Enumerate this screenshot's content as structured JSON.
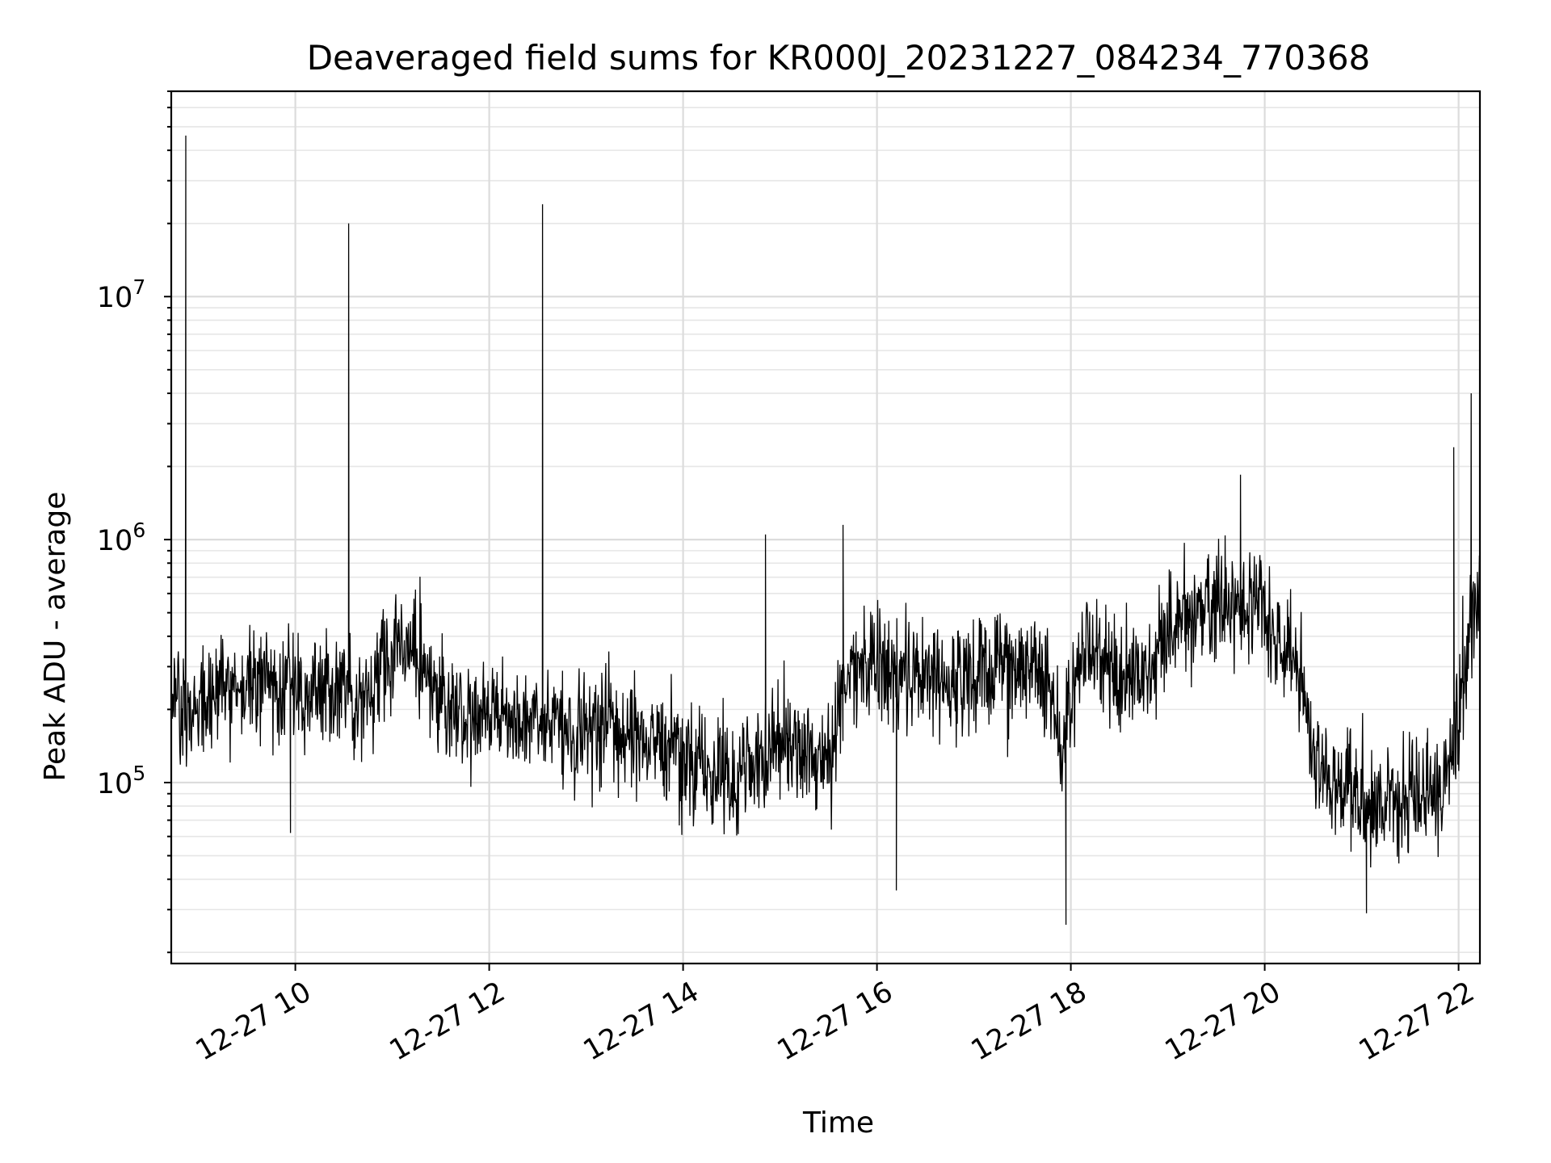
{
  "chart_data": {
    "type": "line",
    "title": "Deaveraged field sums for KR000J_20231227_084234_770368",
    "xlabel": "Time",
    "ylabel": "Peak ADU - average",
    "x_ticks": [
      {
        "hour": 10,
        "label": "12-27 10"
      },
      {
        "hour": 12,
        "label": "12-27 12"
      },
      {
        "hour": 14,
        "label": "12-27 14"
      },
      {
        "hour": 16,
        "label": "12-27 16"
      },
      {
        "hour": 18,
        "label": "12-27 18"
      },
      {
        "hour": 20,
        "label": "12-27 20"
      },
      {
        "hour": 22,
        "label": "12-27 22"
      }
    ],
    "y_ticks": [
      {
        "value": 100000,
        "base": "10",
        "exp": "5"
      },
      {
        "value": 1000000,
        "base": "10",
        "exp": "6"
      },
      {
        "value": 10000000,
        "base": "10",
        "exp": "7"
      }
    ],
    "x_range_hours": [
      8.72,
      22.22
    ],
    "y_scale": "log",
    "ylim": [
      18000,
      70000000
    ],
    "grid": true,
    "line_color": "#000000",
    "series": [
      {
        "x_hours": [
          8.72,
          8.9,
          9.1,
          9.3,
          9.5,
          9.7,
          9.9,
          10.1,
          10.3,
          10.5,
          10.7,
          10.9,
          11.1,
          11.3,
          11.5,
          11.7,
          11.9,
          12.1,
          12.3,
          12.5,
          12.7,
          12.9,
          13.1,
          13.3,
          13.5,
          13.7,
          13.9,
          14.1,
          14.3,
          14.5,
          14.7,
          14.9,
          15.1,
          15.3,
          15.5,
          15.7,
          15.9,
          16.1,
          16.3,
          16.5,
          16.7,
          16.9,
          17.1,
          17.3,
          17.5,
          17.7,
          17.9,
          18.1,
          18.3,
          18.5,
          18.7,
          18.9,
          19.1,
          19.3,
          19.5,
          19.7,
          19.9,
          20.1,
          20.3,
          20.5,
          20.7,
          20.9,
          21.1,
          21.3,
          21.5,
          21.7,
          21.9,
          22.1,
          22.22
        ],
        "baseline": [
          230000,
          220000,
          230000,
          240000,
          250000,
          250000,
          250000,
          240000,
          250000,
          240000,
          240000,
          300000,
          370000,
          320000,
          200000,
          190000,
          190000,
          190000,
          180000,
          180000,
          170000,
          165000,
          160000,
          160000,
          150000,
          150000,
          140000,
          120000,
          110000,
          105000,
          110000,
          140000,
          150000,
          130000,
          120000,
          300000,
          320000,
          280000,
          260000,
          260000,
          270000,
          270000,
          300000,
          300000,
          290000,
          280000,
          150000,
          320000,
          330000,
          260000,
          280000,
          320000,
          480000,
          500000,
          520000,
          540000,
          560000,
          470000,
          380000,
          120000,
          95000,
          90000,
          85000,
          85000,
          85000,
          90000,
          100000,
          360000,
          650000
        ],
        "spikes": [
          {
            "hour": 8.87,
            "value": 46000000
          },
          {
            "hour": 10.55,
            "value": 20000000
          },
          {
            "hour": 12.55,
            "value": 24000000
          },
          {
            "hour": 14.85,
            "value": 1050000
          },
          {
            "hour": 15.65,
            "value": 1150000
          },
          {
            "hour": 19.75,
            "value": 1850000
          },
          {
            "hour": 21.95,
            "value": 2400000
          },
          {
            "hour": 22.13,
            "value": 4000000
          }
        ],
        "dips": [
          {
            "hour": 9.95,
            "value": 62000
          },
          {
            "hour": 17.95,
            "value": 26000
          },
          {
            "hour": 16.2,
            "value": 36000
          },
          {
            "hour": 21.05,
            "value": 29000
          }
        ]
      }
    ]
  }
}
